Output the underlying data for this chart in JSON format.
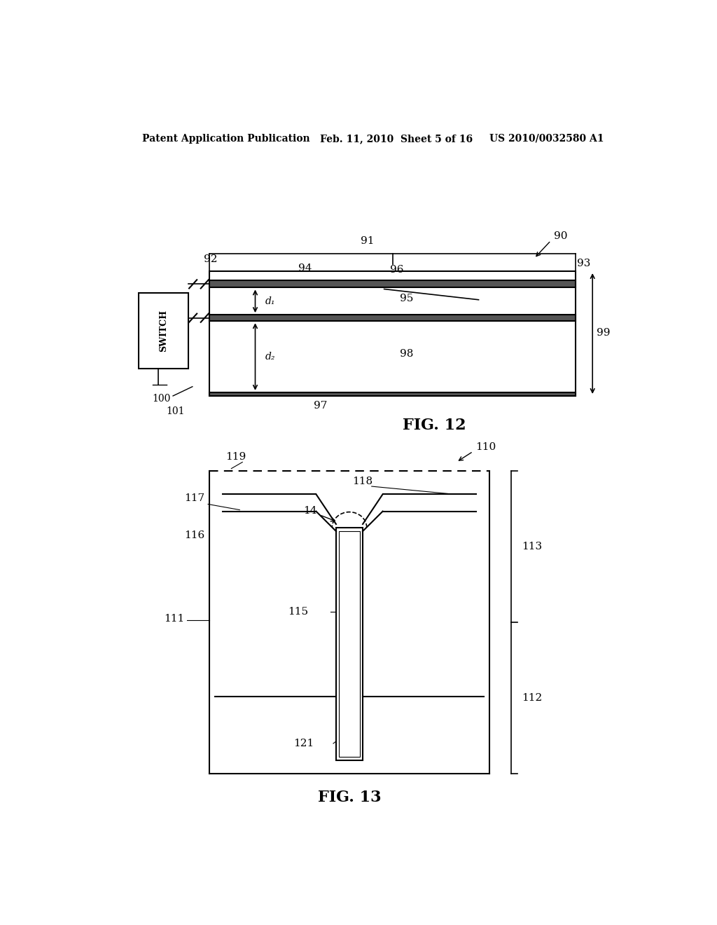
{
  "bg_color": "#ffffff",
  "header_left": "Patent Application Publication",
  "header_mid": "Feb. 11, 2010  Sheet 5 of 16",
  "header_right": "US 2010/0032580 A1",
  "fig12_title": "FIG. 12",
  "fig13_title": "FIG. 13"
}
